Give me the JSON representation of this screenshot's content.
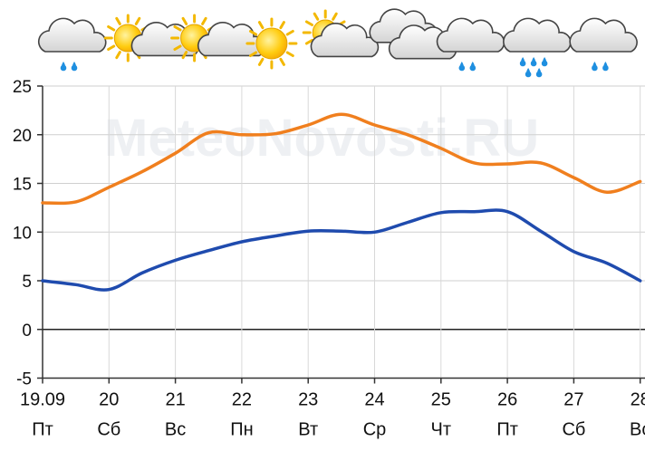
{
  "chart_data": {
    "type": "line",
    "watermark": "MeteoNovosti.RU",
    "x_dates": [
      "19.09",
      "20",
      "21",
      "22",
      "23",
      "24",
      "25",
      "26",
      "27",
      "28"
    ],
    "x_days": [
      "Пт",
      "Сб",
      "Вс",
      "Пн",
      "Вт",
      "Ср",
      "Чт",
      "Пт",
      "Сб",
      "Вс"
    ],
    "y_ticks": [
      "25",
      "20",
      "15",
      "10",
      "5",
      "0",
      "-5"
    ],
    "ylim": [
      -5,
      25
    ],
    "grid": true,
    "x": [
      19.0,
      19.5,
      20.0,
      20.5,
      21.0,
      21.5,
      22.0,
      22.5,
      23.0,
      23.5,
      24.0,
      24.5,
      25.0,
      25.5,
      26.0,
      26.5,
      27.0,
      27.5,
      28.0
    ],
    "series": [
      {
        "color": "#f07f1e",
        "values": [
          13,
          13.1,
          14.6,
          16.2,
          18.1,
          20.2,
          20,
          20.1,
          21,
          22.1,
          21,
          20,
          18.6,
          17.1,
          17,
          17.1,
          15.6,
          14.1,
          15.2
        ]
      },
      {
        "color": "#1f4bae",
        "values": [
          5,
          4.6,
          4.1,
          5.8,
          7.1,
          8.1,
          9,
          9.6,
          10.1,
          10.1,
          10,
          11,
          12,
          12.1,
          12.1,
          10.1,
          8,
          6.8,
          5
        ]
      }
    ]
  },
  "weather_icons": [
    {
      "name": "cloud-light-rain-icon",
      "kind": "rain",
      "drops": 2
    },
    {
      "name": "sun-cloud-icon",
      "kind": "suncloud"
    },
    {
      "name": "sun-cloud-icon",
      "kind": "suncloud"
    },
    {
      "name": "sun-icon",
      "kind": "sun"
    },
    {
      "name": "sun-behind-cloud-icon",
      "kind": "sunbehind"
    },
    {
      "name": "overcast-icon",
      "kind": "overcast"
    },
    {
      "name": "cloud-light-rain-icon",
      "kind": "rain",
      "drops": 2
    },
    {
      "name": "cloud-heavy-rain-icon",
      "kind": "rain",
      "drops": 5
    },
    {
      "name": "cloud-light-rain-icon",
      "kind": "rain",
      "drops": 2
    },
    {
      "name": "sun-icon",
      "kind": "sun-partial"
    }
  ]
}
